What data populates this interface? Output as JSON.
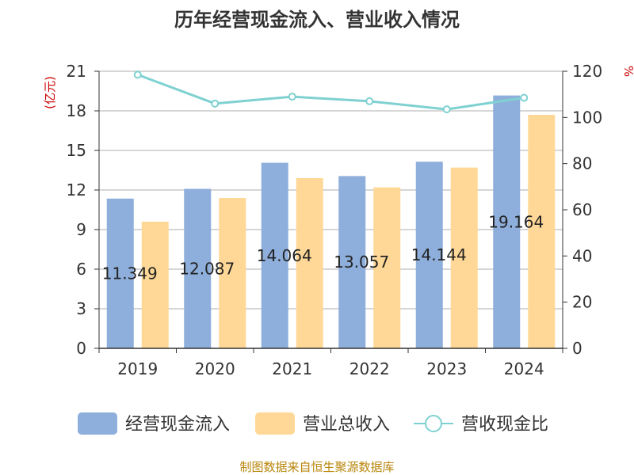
{
  "chart_data": {
    "type": "bar",
    "title": "历年经营现金流入、营业收入情况",
    "categories": [
      "2019",
      "2020",
      "2021",
      "2022",
      "2023",
      "2024"
    ],
    "series": [
      {
        "name": "经营现金流入",
        "type": "bar",
        "axis": "left",
        "color": "#8eaedb",
        "values": [
          11.349,
          12.087,
          14.064,
          13.057,
          14.144,
          19.164
        ],
        "labels": [
          "11.349",
          "12.087",
          "14.064",
          "13.057",
          "14.144",
          "19.164"
        ]
      },
      {
        "name": "营业总收入",
        "type": "bar",
        "axis": "left",
        "color": "#ffd897",
        "values": [
          9.6,
          11.4,
          12.9,
          12.2,
          13.7,
          17.7
        ]
      },
      {
        "name": "营收现金比",
        "type": "line",
        "axis": "right",
        "color": "#7fd1d1",
        "values": [
          118.5,
          106,
          109,
          107,
          103.5,
          108.5
        ]
      }
    ],
    "y_left": {
      "unit": "(亿元)",
      "min": 0,
      "max": 21,
      "ticks": [
        0,
        3,
        6,
        9,
        12,
        15,
        18,
        21
      ]
    },
    "y_right": {
      "unit": "%",
      "min": 0,
      "max": 120,
      "ticks": [
        0,
        20,
        40,
        60,
        80,
        100,
        120
      ]
    },
    "grid": true,
    "legend": "bottom"
  },
  "source": "制图数据来自恒生聚源数据库"
}
